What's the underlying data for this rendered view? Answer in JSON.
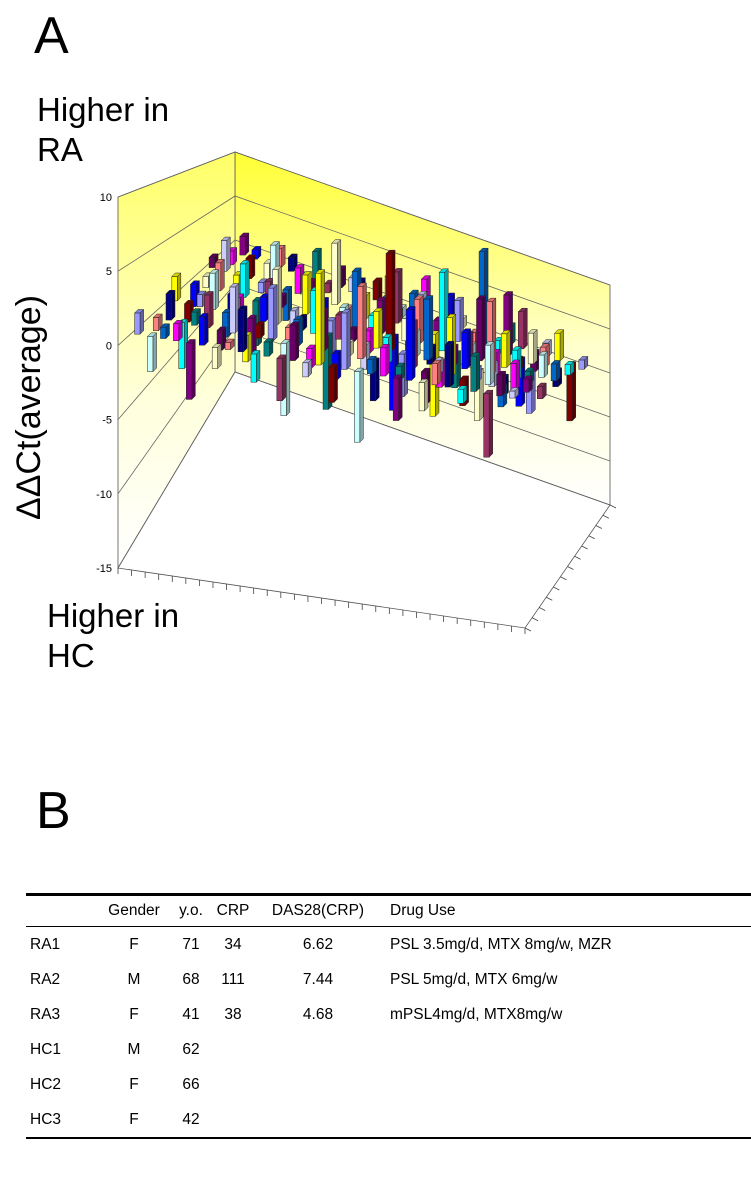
{
  "panel_a": {
    "letter": "A",
    "upper_note": "Higher in RA",
    "lower_note": "Higher in HC",
    "y_label": "ΔΔCt(average)"
  },
  "panel_b": {
    "letter": "B",
    "headers": [
      "",
      "Gender",
      "y.o.",
      "CRP",
      "DAS28(CRP)",
      "Drug Use"
    ],
    "rows": [
      [
        "RA1",
        "F",
        "71",
        "34",
        "6.62",
        "PSL 3.5mg/d, MTX 8mg/w, MZR"
      ],
      [
        "RA2",
        "M",
        "68",
        "111",
        "7.44",
        "PSL 5mg/d, MTX 6mg/w"
      ],
      [
        "RA3",
        "F",
        "41",
        "38",
        "4.68",
        "mPSL4mg/d,  MTX8mg/w"
      ],
      [
        "HC1",
        "M",
        "62",
        "",
        "",
        ""
      ],
      [
        "HC2",
        "F",
        "66",
        "",
        "",
        ""
      ],
      [
        "HC3",
        "F",
        "42",
        "",
        "",
        ""
      ]
    ]
  },
  "chart_data": {
    "type": "bar",
    "ylabel": "ΔΔCt(average)",
    "ylim": [
      -15,
      10
    ],
    "yticks": [
      "10",
      "5",
      "0",
      "-5",
      "-10",
      "-15"
    ],
    "grid": true,
    "colors": [
      "#9999ff",
      "#993366",
      "#ffffcc",
      "#ccffff",
      "#660066",
      "#ff8080",
      "#0066cc",
      "#ccccff",
      "#000080",
      "#ff00ff",
      "#ffff00",
      "#00ffff",
      "#800080",
      "#800000",
      "#008080",
      "#0000ff"
    ],
    "series": [
      {
        "values": [
          1.5,
          -2.5,
          0.8,
          1.2,
          -4.0,
          2.0,
          -1.5,
          0.5,
          3.0,
          -2.0,
          1.0,
          -3.0,
          2.5,
          -1.0,
          6.5,
          -2.5,
          4.0,
          -5.0,
          1.0,
          2.0,
          -3.0,
          5.0,
          -2.0,
          1.5,
          3.0,
          -1.0,
          2.5,
          -4.5,
          1.5,
          0.5
        ]
      },
      {
        "values": [
          -1.0,
          2.0,
          -3.5,
          1.0,
          2.5,
          -1.5,
          3.5,
          -2.0,
          1.0,
          4.0,
          -5.5,
          2.0,
          -1.5,
          3.0,
          -2.0,
          1.0,
          5.5,
          -3.0,
          2.0,
          -1.0,
          3.5,
          -2.5,
          1.0,
          4.5,
          -2.0,
          1.0,
          3.0,
          -1.5,
          2.0,
          1.0
        ]
      },
      {
        "values": [
          2.0,
          -1.5,
          1.0,
          3.0,
          -2.0,
          1.5,
          -3.0,
          2.0,
          4.5,
          -2.5,
          1.0,
          3.5,
          -6.0,
          2.0,
          1.0,
          -2.0,
          3.0,
          8.0,
          -3.5,
          2.0,
          5.0,
          -2.0,
          1.5,
          3.0,
          -4.0,
          6.0,
          -1.5,
          2.5,
          1.0,
          -1.0
        ]
      },
      {
        "values": [
          -2.0,
          1.0,
          2.5,
          -1.5,
          3.0,
          -4.0,
          2.0,
          1.0,
          -2.5,
          3.5,
          2.0,
          -3.0,
          1.5,
          5.0,
          -2.0,
          3.0,
          -6.5,
          2.0,
          4.0,
          -1.5,
          7.0,
          -3.0,
          2.0,
          5.5,
          -2.0,
          3.0,
          1.0,
          -3.5,
          2.0,
          1.5
        ]
      },
      {
        "values": [
          1.0,
          3.0,
          -2.0,
          2.0,
          -1.0,
          4.0,
          -3.0,
          2.5,
          1.5,
          -2.0,
          6.0,
          -4.0,
          3.0,
          -1.5,
          2.0,
          5.0,
          -2.5,
          3.5,
          -8.0,
          2.0,
          4.0,
          -2.0,
          9.5,
          -3.0,
          6.0,
          -4.5,
          3.0,
          2.0,
          -1.5,
          1.0
        ]
      },
      {
        "values": [
          -1.5,
          2.0,
          1.0,
          -3.0,
          2.0,
          1.5,
          -2.0,
          3.0,
          -1.0,
          2.0,
          1.5,
          -2.5,
          2.0,
          3.0,
          -1.5,
          2.0,
          4.0,
          -2.0,
          3.0,
          1.0,
          -2.5,
          3.5,
          -1.5,
          2.0,
          4.0,
          -2.0,
          1.5,
          3.0,
          -6.0,
          1.0
        ]
      }
    ]
  }
}
